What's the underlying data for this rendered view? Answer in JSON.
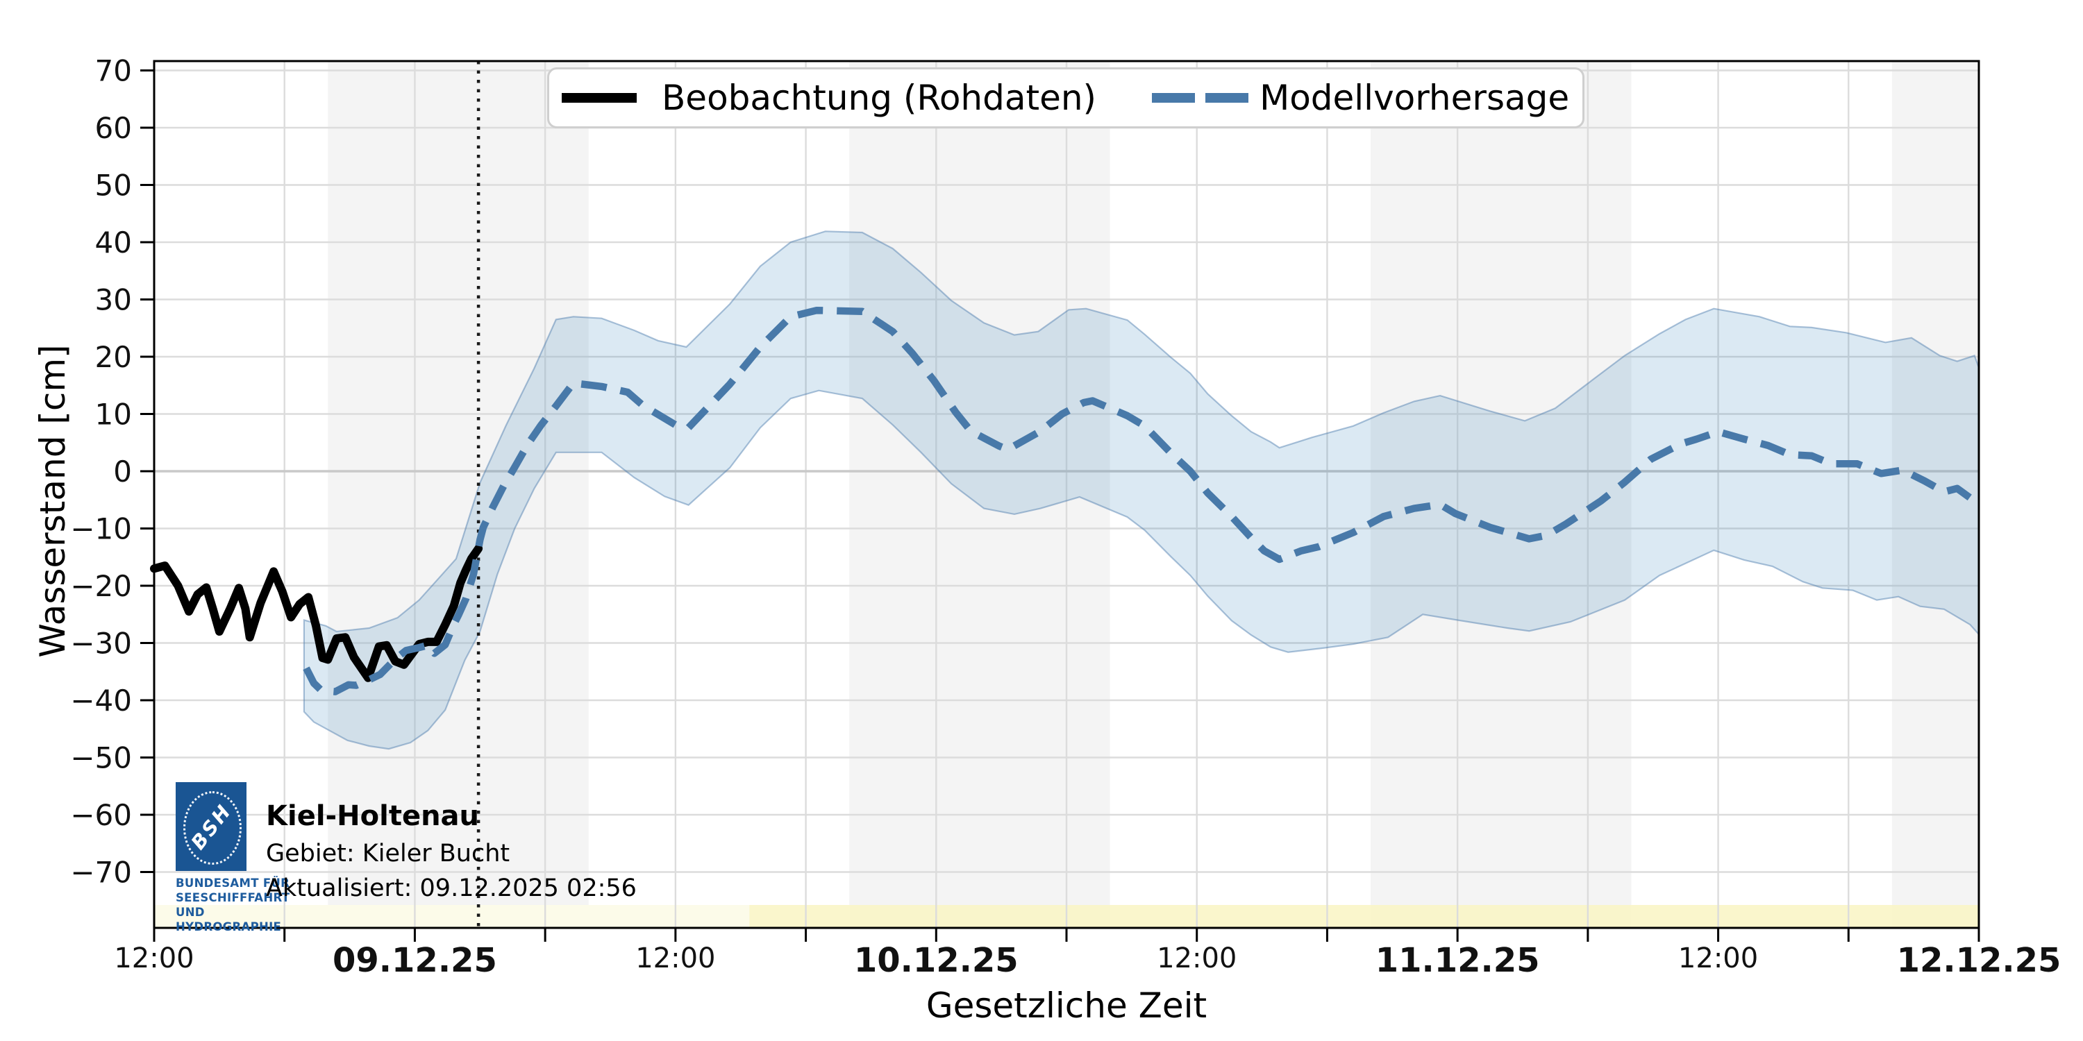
{
  "station": {
    "name": "Kiel-Holtenau",
    "area": "Gebiet: Kieler Bucht",
    "updated": "Aktualisiert: 09.12.2025 02:56"
  },
  "logo": {
    "acronym": "BSH",
    "caption_lines": [
      "BUNDESAMT FÜR",
      "SEESCHIFFFAHRT",
      "UND",
      "HYDROGRAPHIE"
    ],
    "box_color": "#1a5593",
    "caption_color": "#1e5c9e"
  },
  "legend": {
    "observation_label": "Beobachtung (Rohdaten)",
    "forecast_label": "Modellvorhersage"
  },
  "colors": {
    "observation": "#000000",
    "forecast": "#4879a9",
    "band_fill": "rgba(31,119,180,0.16)",
    "band_edge": "rgba(70,120,170,0.45)",
    "night_shade": "#f4f4f4",
    "gridline": "#dcdcdc",
    "zero_line": "#c9c9c9",
    "warning_pale": "rgba(252,251,232,0.95)",
    "warning_yellow": "rgba(249,245,198,0.9)",
    "now_line": "#1a1a1a",
    "frame": "#000000"
  },
  "chart_data": {
    "type": "line",
    "title": "",
    "xlabel": "Gesetzliche Zeit",
    "ylabel": "Wasserstand [cm]",
    "x_unit": "hours since 08.12.2025 12:00 (legal time)",
    "xlim": [
      0,
      84
    ],
    "ylim": [
      -80,
      73
    ],
    "grid": true,
    "legend_position": "top",
    "now_marker_t": 14.93,
    "night_shading_t": [
      [
        8,
        20
      ],
      [
        32,
        44
      ],
      [
        56,
        68
      ],
      [
        80,
        84
      ]
    ],
    "warning_strip": {
      "segments": [
        {
          "t0": 0,
          "t1": 27.4,
          "tone": "pale"
        },
        {
          "t0": 27.4,
          "t1": 84,
          "tone": "yellow"
        }
      ]
    },
    "xticks": [
      {
        "t": 0,
        "label": "12:00",
        "bold": false
      },
      {
        "t": 6,
        "label": "",
        "bold": false
      },
      {
        "t": 12,
        "label": "09.12.25",
        "bold": true
      },
      {
        "t": 18,
        "label": "",
        "bold": false
      },
      {
        "t": 24,
        "label": "12:00",
        "bold": false
      },
      {
        "t": 30,
        "label": "",
        "bold": false
      },
      {
        "t": 36,
        "label": "10.12.25",
        "bold": true
      },
      {
        "t": 42,
        "label": "",
        "bold": false
      },
      {
        "t": 48,
        "label": "12:00",
        "bold": false
      },
      {
        "t": 54,
        "label": "",
        "bold": false
      },
      {
        "t": 60,
        "label": "11.12.25",
        "bold": true
      },
      {
        "t": 66,
        "label": "",
        "bold": false
      },
      {
        "t": 72,
        "label": "12:00",
        "bold": false
      },
      {
        "t": 78,
        "label": "",
        "bold": false
      },
      {
        "t": 84,
        "label": "12.12.25",
        "bold": true
      }
    ],
    "yticks": [
      70,
      60,
      50,
      40,
      30,
      20,
      10,
      0,
      -10,
      -20,
      -30,
      -40,
      -50,
      -60,
      -70
    ],
    "series": [
      {
        "name": "Beobachtung (Rohdaten)",
        "style": "solid",
        "color": "#000000",
        "points": [
          [
            0,
            -17
          ],
          [
            0.5,
            -16.5
          ],
          [
            1.1,
            -20
          ],
          [
            1.6,
            -24.5
          ],
          [
            2.0,
            -21.5
          ],
          [
            2.4,
            -20.3
          ],
          [
            2.7,
            -24
          ],
          [
            3.0,
            -28
          ],
          [
            3.5,
            -24
          ],
          [
            3.9,
            -20.4
          ],
          [
            4.2,
            -24
          ],
          [
            4.4,
            -29
          ],
          [
            4.9,
            -23
          ],
          [
            5.5,
            -17.5
          ],
          [
            5.9,
            -21
          ],
          [
            6.3,
            -25.5
          ],
          [
            6.7,
            -23.2
          ],
          [
            7.1,
            -22
          ],
          [
            7.45,
            -27
          ],
          [
            7.75,
            -32.6
          ],
          [
            8.0,
            -32.9
          ],
          [
            8.4,
            -29.2
          ],
          [
            8.8,
            -29
          ],
          [
            9.2,
            -32.5
          ],
          [
            9.85,
            -36.1
          ],
          [
            10.35,
            -30.6
          ],
          [
            10.7,
            -30.4
          ],
          [
            11.1,
            -33.2
          ],
          [
            11.5,
            -33.8
          ],
          [
            12.2,
            -30.2
          ],
          [
            12.6,
            -29.8
          ],
          [
            13.0,
            -29.8
          ],
          [
            13.4,
            -26.8
          ],
          [
            13.8,
            -23.5
          ],
          [
            14.1,
            -19.5
          ],
          [
            14.35,
            -17.3
          ],
          [
            14.6,
            -15.3
          ],
          [
            14.93,
            -13.5
          ]
        ]
      },
      {
        "name": "Modellvorhersage",
        "style": "dashed",
        "color": "#4879a9",
        "points": [
          [
            7.0,
            -34.4
          ],
          [
            7.35,
            -37
          ],
          [
            7.7,
            -38.3
          ],
          [
            8.34,
            -38.5
          ],
          [
            8.95,
            -37.3
          ],
          [
            9.3,
            -37.4
          ],
          [
            9.85,
            -36.5
          ],
          [
            10.4,
            -35.5
          ],
          [
            11.1,
            -32.8
          ],
          [
            11.6,
            -31.3
          ],
          [
            12.2,
            -30.8
          ],
          [
            12.6,
            -30.4
          ],
          [
            12.9,
            -31.8
          ],
          [
            13.4,
            -30.3
          ],
          [
            13.8,
            -26.7
          ],
          [
            14.0,
            -25.2
          ],
          [
            14.35,
            -22.3
          ],
          [
            14.7,
            -18
          ],
          [
            15.0,
            -12
          ],
          [
            15.15,
            -9.8
          ],
          [
            15.6,
            -6.2
          ],
          [
            16.1,
            -2.5
          ],
          [
            16.6,
            0.7
          ],
          [
            17.2,
            4.7
          ],
          [
            17.8,
            8
          ],
          [
            18.5,
            11.4
          ],
          [
            19.3,
            15.4
          ],
          [
            20.6,
            14.8
          ],
          [
            21.8,
            13.8
          ],
          [
            22.5,
            11.5
          ],
          [
            24.0,
            8.1
          ],
          [
            24.6,
            7.6
          ],
          [
            26.5,
            15.2
          ],
          [
            27.9,
            21.7
          ],
          [
            29.3,
            27
          ],
          [
            30.5,
            28.1
          ],
          [
            32.6,
            27.9
          ],
          [
            34.0,
            24.4
          ],
          [
            34.9,
            20.6
          ],
          [
            35.9,
            15.8
          ],
          [
            36.9,
            10.3
          ],
          [
            37.6,
            7
          ],
          [
            38.9,
            4.4
          ],
          [
            39.3,
            3.8
          ],
          [
            40.8,
            7
          ],
          [
            41.8,
            10
          ],
          [
            42.8,
            12
          ],
          [
            43.2,
            12.3
          ],
          [
            44.8,
            9.7
          ],
          [
            45.6,
            7.9
          ],
          [
            46.8,
            3.2
          ],
          [
            47.7,
            0
          ],
          [
            48.5,
            -3.8
          ],
          [
            49.6,
            -7.9
          ],
          [
            50.5,
            -11.6
          ],
          [
            51.1,
            -13.9
          ],
          [
            51.8,
            -15.4
          ],
          [
            52.8,
            -13.9
          ],
          [
            53.6,
            -13.2
          ],
          [
            55.2,
            -10.7
          ],
          [
            56.6,
            -7.9
          ],
          [
            58.0,
            -6.5
          ],
          [
            59.2,
            -5.8
          ],
          [
            59.9,
            -7.4
          ],
          [
            61.5,
            -9.8
          ],
          [
            63.3,
            -11.8
          ],
          [
            64.1,
            -11.2
          ],
          [
            65.0,
            -9.2
          ],
          [
            66.6,
            -5.2
          ],
          [
            67.7,
            -1.9
          ],
          [
            68.9,
            2.1
          ],
          [
            70.3,
            4.8
          ],
          [
            71.0,
            5.6
          ],
          [
            72.0,
            6.9
          ],
          [
            73.2,
            5.6
          ],
          [
            74.3,
            4.5
          ],
          [
            75.3,
            2.9
          ],
          [
            76.3,
            2.7
          ],
          [
            77.2,
            1.3
          ],
          [
            78.4,
            1.3
          ],
          [
            79.5,
            -0.4
          ],
          [
            80.5,
            0.2
          ],
          [
            81.5,
            -1.7
          ],
          [
            82.4,
            -3.6
          ],
          [
            83.0,
            -3.0
          ],
          [
            83.8,
            -5.2
          ],
          [
            84,
            -6.3
          ]
        ]
      }
    ],
    "uncertainty_band": {
      "series": "Modellvorhersage",
      "upper": [
        [
          6.9,
          -26
        ],
        [
          7.9,
          -27
        ],
        [
          8.4,
          -28
        ],
        [
          9.9,
          -27.4
        ],
        [
          11.2,
          -25.6
        ],
        [
          12.2,
          -22.5
        ],
        [
          13.1,
          -18.7
        ],
        [
          13.9,
          -15.3
        ],
        [
          15.0,
          -2
        ],
        [
          16.2,
          8
        ],
        [
          17.5,
          18
        ],
        [
          18.5,
          26.5
        ],
        [
          19.3,
          27
        ],
        [
          20.6,
          26.7
        ],
        [
          22.1,
          24.6
        ],
        [
          23.2,
          22.8
        ],
        [
          24.5,
          21.7
        ],
        [
          26.5,
          29.2
        ],
        [
          27.9,
          35.8
        ],
        [
          29.3,
          40
        ],
        [
          30.9,
          41.9
        ],
        [
          32.6,
          41.7
        ],
        [
          34,
          38.9
        ],
        [
          35.3,
          34.7
        ],
        [
          36.7,
          29.8
        ],
        [
          38.2,
          25.9
        ],
        [
          39.6,
          23.8
        ],
        [
          40.7,
          24.4
        ],
        [
          42.1,
          28.2
        ],
        [
          42.9,
          28.4
        ],
        [
          44.8,
          26.4
        ],
        [
          45.6,
          23.9
        ],
        [
          46.8,
          19.9
        ],
        [
          47.7,
          17.1
        ],
        [
          48.5,
          13.5
        ],
        [
          49.6,
          9.7
        ],
        [
          50.5,
          6.9
        ],
        [
          51.4,
          5.1
        ],
        [
          51.8,
          4.1
        ],
        [
          52.8,
          5.3
        ],
        [
          53.3,
          5.9
        ],
        [
          55.2,
          7.9
        ],
        [
          56.6,
          10.2
        ],
        [
          58,
          12.2
        ],
        [
          59.2,
          13.2
        ],
        [
          61.5,
          10.5
        ],
        [
          63.1,
          8.8
        ],
        [
          64.5,
          11
        ],
        [
          66.2,
          15.9
        ],
        [
          67.7,
          20.2
        ],
        [
          69.3,
          24
        ],
        [
          70.5,
          26.5
        ],
        [
          71.8,
          28.4
        ],
        [
          73.9,
          27
        ],
        [
          75.3,
          25.3
        ],
        [
          76.3,
          25.1
        ],
        [
          77.9,
          24.2
        ],
        [
          79.7,
          22.5
        ],
        [
          80.9,
          23.3
        ],
        [
          82.2,
          20.2
        ],
        [
          83,
          19.2
        ],
        [
          83.8,
          20.2
        ],
        [
          84,
          18.1
        ]
      ],
      "lower": [
        [
          6.9,
          -42
        ],
        [
          7.35,
          -43.8
        ],
        [
          8.9,
          -47
        ],
        [
          9.9,
          -48
        ],
        [
          10.8,
          -48.5
        ],
        [
          11.8,
          -47.4
        ],
        [
          12.6,
          -45.3
        ],
        [
          13.4,
          -41.7
        ],
        [
          14.3,
          -33
        ],
        [
          15.0,
          -28
        ],
        [
          15.8,
          -18
        ],
        [
          16.6,
          -10
        ],
        [
          17.5,
          -3
        ],
        [
          18.5,
          3.3
        ],
        [
          20.6,
          3.3
        ],
        [
          22.1,
          -1.1
        ],
        [
          23.5,
          -4.4
        ],
        [
          24.6,
          -5.9
        ],
        [
          26.5,
          0.6
        ],
        [
          27.9,
          7.6
        ],
        [
          29.3,
          12.7
        ],
        [
          30.6,
          14.1
        ],
        [
          32.6,
          12.7
        ],
        [
          34,
          8.1
        ],
        [
          35.3,
          3.3
        ],
        [
          36.7,
          -2.2
        ],
        [
          38.2,
          -6.5
        ],
        [
          39.6,
          -7.5
        ],
        [
          40.8,
          -6.5
        ],
        [
          42.6,
          -4.5
        ],
        [
          44.8,
          -8
        ],
        [
          45.6,
          -10.3
        ],
        [
          46.8,
          -14.9
        ],
        [
          47.7,
          -18.2
        ],
        [
          48.5,
          -21.8
        ],
        [
          49.6,
          -26.1
        ],
        [
          50.5,
          -28.6
        ],
        [
          51.4,
          -30.7
        ],
        [
          52.2,
          -31.6
        ],
        [
          53.8,
          -30.9
        ],
        [
          55.2,
          -30.2
        ],
        [
          56.8,
          -29
        ],
        [
          58.4,
          -25
        ],
        [
          60,
          -26
        ],
        [
          62.3,
          -27.4
        ],
        [
          63.3,
          -27.9
        ],
        [
          65.2,
          -26.3
        ],
        [
          67.7,
          -22.5
        ],
        [
          69.3,
          -18.2
        ],
        [
          71.8,
          -13.8
        ],
        [
          73.2,
          -15.5
        ],
        [
          74.5,
          -16.6
        ],
        [
          75.9,
          -19.3
        ],
        [
          76.8,
          -20.4
        ],
        [
          78.2,
          -20.8
        ],
        [
          79.3,
          -22.5
        ],
        [
          80.3,
          -21.9
        ],
        [
          81.3,
          -23.6
        ],
        [
          82.4,
          -24.1
        ],
        [
          83.6,
          -26.8
        ],
        [
          84,
          -28.5
        ]
      ]
    }
  }
}
